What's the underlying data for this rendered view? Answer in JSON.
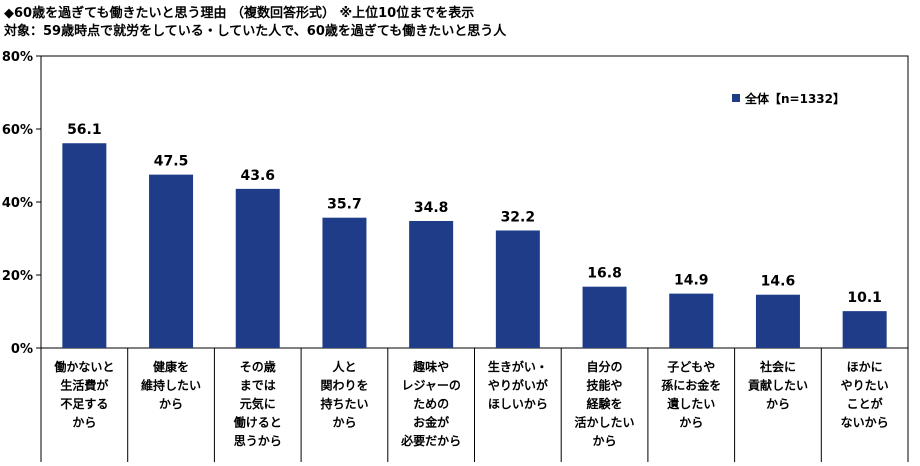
{
  "header": {
    "title": "◆60歳を過ぎても働きたいと思う理由 （複数回答形式） ※上位10位までを表示",
    "subtitle": "対象：59歳時点で就労をしている・していた人で、60歳を過ぎても働きたいと思う人"
  },
  "colors": {
    "bar": "#1f3c88",
    "axis": "#000000",
    "grid": "#c8c8c8"
  },
  "chart_data": {
    "type": "bar",
    "categories": [
      [
        "働かないと",
        "生活費が",
        "不足する",
        "から"
      ],
      [
        "健康を",
        "維持したい",
        "から"
      ],
      [
        "その歳",
        "までは",
        "元気に",
        "働けると",
        "思うから"
      ],
      [
        "人と",
        "関わりを",
        "持ちたい",
        "から"
      ],
      [
        "趣味や",
        "レジャーの",
        "ための",
        "お金が",
        "必要だから"
      ],
      [
        "生きがい・",
        "やりがいが",
        "ほしいから"
      ],
      [
        "自分の",
        "技能や",
        "経験を",
        "活かしたい",
        "から"
      ],
      [
        "子どもや",
        "孫にお金を",
        "遺したい",
        "から"
      ],
      [
        "社会に",
        "貢献したい",
        "から"
      ],
      [
        "ほかに",
        "やりたい",
        "ことが",
        "ないから"
      ]
    ],
    "series": [
      {
        "name": "全体【n=1332】",
        "values": [
          56.1,
          47.5,
          43.6,
          35.7,
          34.8,
          32.2,
          16.8,
          14.9,
          14.6,
          10.1
        ]
      }
    ],
    "yticks": [
      "0%",
      "20%",
      "40%",
      "60%",
      "80%"
    ],
    "ylim": [
      0,
      80
    ],
    "legend_position": "top-right"
  }
}
